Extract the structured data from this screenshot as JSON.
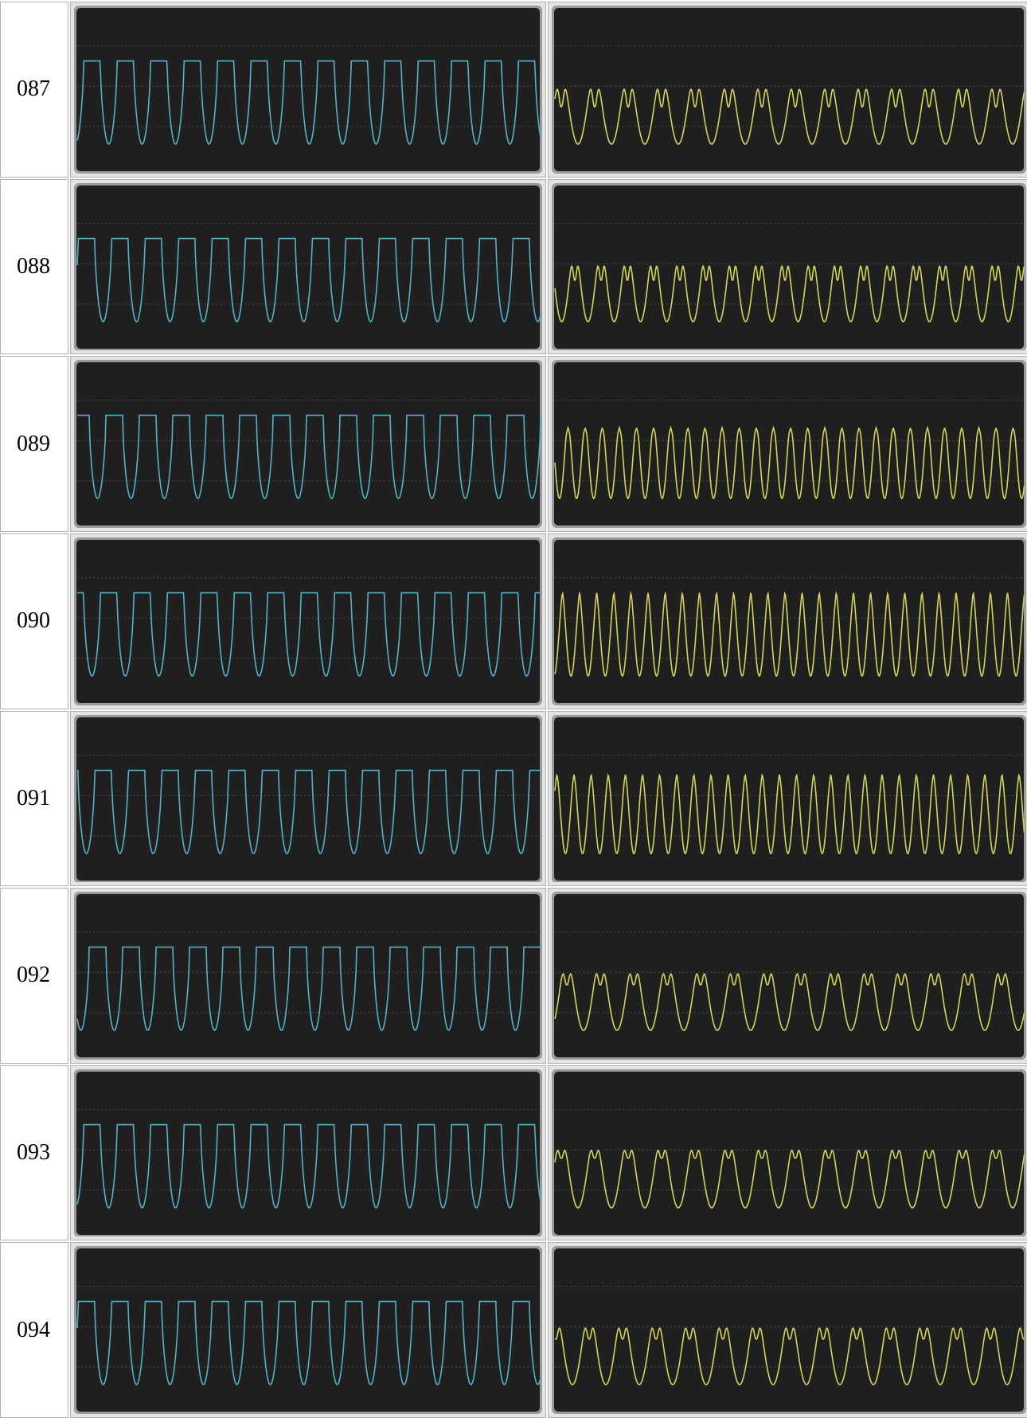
{
  "table": {
    "rows": [
      [
        "087"
      ],
      [
        "088"
      ],
      [
        "089"
      ],
      [
        "090"
      ],
      [
        "091"
      ],
      [
        "092"
      ],
      [
        "093"
      ],
      [
        "094"
      ]
    ]
  }
}
